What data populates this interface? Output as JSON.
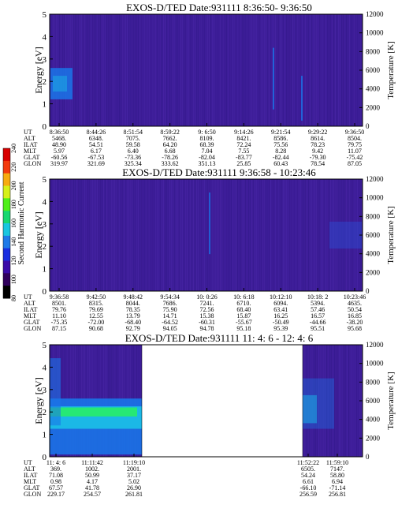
{
  "chart_data": [
    {
      "type": "heatmap",
      "title": "EXOS-D/TED   Date:931111  8:36:50- 9:36:50",
      "ylabel": "Energy [eV]",
      "ylabel_right": "Temperature [K]",
      "ylim": [
        0,
        5
      ],
      "y_ticks": [
        "0",
        "1",
        "2",
        "3",
        "4",
        "5"
      ],
      "y2lim": [
        0,
        12000
      ],
      "y2_ticks": [
        "0",
        "2000",
        "4000",
        "6000",
        "8000",
        "10000",
        "12000"
      ],
      "x_ticks": [
        "8:36:50",
        "8:44:26",
        "8:51:54",
        "8:59:22",
        "9: 6:50",
        "9:14:26",
        "9:21:54",
        "9:29:22",
        "9:36:50"
      ],
      "ephemeris": [
        {
          "label": "UT",
          "values": [
            "8:36:50",
            "8:44:26",
            "8:51:54",
            "8:59:22",
            "9: 6:50",
            "9:14:26",
            "9:21:54",
            "9:29:22",
            "9:36:50"
          ]
        },
        {
          "label": "ALT",
          "values": [
            "5468.",
            "6348.",
            "7075.",
            "7662.",
            "8109.",
            "8421.",
            "8586.",
            "8614.",
            "8504."
          ]
        },
        {
          "label": "ILAT",
          "values": [
            "48.90",
            "54.51",
            "59.58",
            "64.20",
            "68.39",
            "72.24",
            "75.56",
            "78.23",
            "79.75"
          ]
        },
        {
          "label": "MLT",
          "values": [
            "5.97",
            "6.17",
            "6.40",
            "6.68",
            "7.04",
            "7.55",
            "8.28",
            "9.42",
            "11.07"
          ]
        },
        {
          "label": "GLAT",
          "values": [
            "-60.56",
            "-67.53",
            "-73.36",
            "-78.26",
            "-82.04",
            "-83.77",
            "-82.44",
            "-79.30",
            "-75.42"
          ]
        },
        {
          "label": "GLON",
          "values": [
            "319.97",
            "321.69",
            "325.34",
            "333.62",
            "351.13",
            "25.85",
            "60.43",
            "78.54",
            "87.05"
          ]
        }
      ]
    },
    {
      "type": "heatmap",
      "title": "EXOS-D/TED   Date:931111  9:36:58 - 10:23:46",
      "ylabel": "Energy [eV]",
      "ylabel_right": "Temperature [K]",
      "ylim": [
        0,
        5
      ],
      "y_ticks": [
        "0",
        "1",
        "2",
        "3",
        "4",
        "5"
      ],
      "y2lim": [
        0,
        12000
      ],
      "y2_ticks": [
        "0",
        "2000",
        "4000",
        "6000",
        "8000",
        "10000",
        "12000"
      ],
      "x_ticks": [
        "9:36:58",
        "9:42:50",
        "9:48:42",
        "9:54:34",
        "10: 0:26",
        "10: 6:18",
        "10:12:10",
        "10:18: 2",
        "10:23:46"
      ],
      "ephemeris": [
        {
          "label": "UT",
          "values": [
            "9:36:58",
            "9:42:50",
            "9:48:42",
            "9:54:34",
            "10: 0:26",
            "10: 6:18",
            "10:12:10",
            "10:18: 2",
            "10:23:46"
          ]
        },
        {
          "label": "ALT",
          "values": [
            "8501.",
            "8315.",
            "8044.",
            "7686.",
            "7241.",
            "6710.",
            "6094.",
            "5394.",
            "4635."
          ]
        },
        {
          "label": "ILAT",
          "values": [
            "79.76",
            "79.69",
            "78.35",
            "75.90",
            "72.56",
            "68.40",
            "63.41",
            "57.46",
            "50.54"
          ]
        },
        {
          "label": "MLT",
          "values": [
            "11.10",
            "12.55",
            "13.79",
            "14.71",
            "15.38",
            "15.87",
            "16.25",
            "16.57",
            "16.85"
          ]
        },
        {
          "label": "GLAT",
          "values": [
            "-75.35",
            "-72.00",
            "-68.40",
            "-64.52",
            "-60.31",
            "-55.67",
            "-50.49",
            "-44.66",
            "-38.20"
          ]
        },
        {
          "label": "GLON",
          "values": [
            "87.15",
            "90.68",
            "92.79",
            "94.05",
            "94.78",
            "95.18",
            "95.39",
            "95.51",
            "95.68"
          ]
        }
      ]
    },
    {
      "type": "heatmap",
      "title": "EXOS-D/TED   Date:931111  11: 4: 6 - 12: 4: 6",
      "ylabel": "Energy [eV]",
      "ylabel_right": "Temperature [K]",
      "ylim": [
        0,
        5
      ],
      "y_ticks": [
        "0",
        "1",
        "2",
        "3",
        "4",
        "5"
      ],
      "y2lim": [
        0,
        12000
      ],
      "y2_ticks": [
        "0",
        "2000",
        "4000",
        "6000",
        "8000",
        "10000",
        "12000"
      ],
      "data_gap": [
        "11:19:10",
        "11:52:22"
      ],
      "ephemeris_left": [
        {
          "label": "UT",
          "values": [
            "11: 4: 6",
            "11:11:42",
            "11:19:10"
          ]
        },
        {
          "label": "ALT",
          "values": [
            "369.",
            "1002.",
            "2001."
          ]
        },
        {
          "label": "ILAT",
          "values": [
            "71.08",
            "50.99",
            "37.17"
          ]
        },
        {
          "label": "MLT",
          "values": [
            "0.98",
            "4.17",
            "5.02"
          ]
        },
        {
          "label": "GLAT",
          "values": [
            "67.57",
            "41.78",
            "26.90"
          ]
        },
        {
          "label": "GLON",
          "values": [
            "229.17",
            "254.57",
            "261.81"
          ]
        }
      ],
      "ephemeris_right": [
        {
          "values": [
            "11:52:22",
            "11:59:10"
          ]
        },
        {
          "values": [
            "6505.",
            "7147."
          ]
        },
        {
          "values": [
            "54.24",
            "58.80"
          ]
        },
        {
          "values": [
            "6.61",
            "6.94"
          ]
        },
        {
          "values": [
            "-66.10",
            "-71.14"
          ]
        },
        {
          "values": [
            "256.59",
            "256.81"
          ]
        }
      ]
    }
  ],
  "colorbar": {
    "label": "Second Harmonic Current",
    "ticks": [
      "80",
      "100",
      "120",
      "140",
      "160",
      "180",
      "200",
      "220",
      "240"
    ],
    "colors": [
      "#000000",
      "#30005c",
      "#3a0aa8",
      "#1a2ee0",
      "#1f7ae8",
      "#19c6e0",
      "#18d870",
      "#50ef18",
      "#d6f018",
      "#f7ab10",
      "#f33a0e",
      "#d80000"
    ]
  },
  "colors": {
    "background": "#3d1d98",
    "low_band": "#1a74e8",
    "cyan_band": "#1bd8e8",
    "green_band": "#28f060",
    "noise": "#5530b5"
  }
}
